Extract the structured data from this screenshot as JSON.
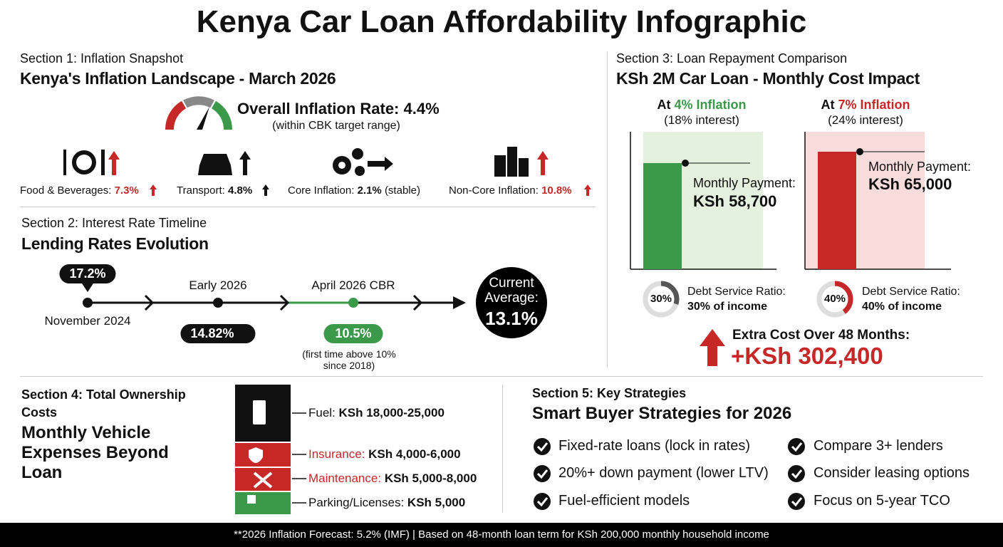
{
  "title": "Kenya Car Loan Affordability Infographic",
  "section1": {
    "label": "Section 1: Inflation Snapshot",
    "heading": "Kenya's Inflation Landscape - March 2026",
    "overall": {
      "label": "Overall Inflation Rate:",
      "value": "4.4%",
      "note": "(within CBK target range)"
    },
    "items": [
      {
        "label": "Food & Beverages:",
        "value": "7.3%"
      },
      {
        "label": "Transport:",
        "value": "4.8%"
      },
      {
        "label": "Core Inflation:",
        "value": "2.1%",
        "note": "(stable)"
      },
      {
        "label": "Non-Core Inflation:",
        "value": "10.8%"
      }
    ]
  },
  "section2": {
    "label": "Section 2: Interest Rate Timeline",
    "heading": "Lending Rates Evolution",
    "points": [
      {
        "date": "November 2024",
        "rate": "17.2%"
      },
      {
        "date": "Early 2026",
        "rate": "14.82%"
      },
      {
        "date": "April 2026 CBR",
        "rate": "10.5%",
        "note": "(first time above 10% since 2018)"
      }
    ],
    "current": {
      "label": "Current Average:",
      "value": "13.1%"
    }
  },
  "section3": {
    "label": "Section 3: Loan Repayment Comparison",
    "heading": "KSh 2M Car Loan - Monthly Cost Impact",
    "scenarios": [
      {
        "prefix": "At",
        "inflation": "4% Inflation",
        "interest": "(18% interest)",
        "color": "#3a9a4a",
        "background": "#e3f1de",
        "payment_label": "Monthly Payment:",
        "payment": {
          "value": 58700,
          "label": "KSh 58,700"
        },
        "dsr_label": "Debt Service Ratio:",
        "dsr": {
          "value": 30,
          "label": "30%"
        },
        "dsr_note": "30% of income"
      },
      {
        "prefix": "At",
        "inflation": "7% Inflation",
        "interest": "(24% interest)",
        "color": "#c62828",
        "background": "#f8dcdc",
        "payment_label": "Monthly Payment:",
        "payment": {
          "value": 65000,
          "label": "KSh 65,000"
        },
        "dsr_label": "Debt Service Ratio:",
        "dsr": {
          "value": 40,
          "label": "40%"
        },
        "dsr_note": "40% of income"
      }
    ],
    "extra": {
      "label": "Extra Cost Over 48 Months:",
      "value": "+KSh 302,400"
    }
  },
  "section4": {
    "label": "Section 4: Total Ownership Costs",
    "heading": "Monthly Vehicle Expenses Beyond Loan",
    "items": [
      {
        "label": "Fuel:",
        "value": "KSh 18,000-25,000"
      },
      {
        "label": "Insurance:",
        "value": "KSh 4,000-6,000"
      },
      {
        "label": "Maintenance:",
        "value": "KSh 5,000-8,000"
      },
      {
        "label": "Parking/Licenses:",
        "value": "KSh 5,000"
      }
    ]
  },
  "section5": {
    "label": "Section 5: Key Strategies",
    "heading": "Smart Buyer Strategies for 2026",
    "items": [
      "Fixed-rate loans (lock in rates)",
      "20%+ down payment (lower LTV)",
      "Fuel-efficient models",
      "Compare 3+ lenders",
      "Consider leasing options",
      "Focus on 5-year TCO"
    ]
  },
  "footer": "**2026 Inflation Forecast: 5.2% (IMF) | Based on 48-month loan term for KSh 200,000 monthly household income"
}
